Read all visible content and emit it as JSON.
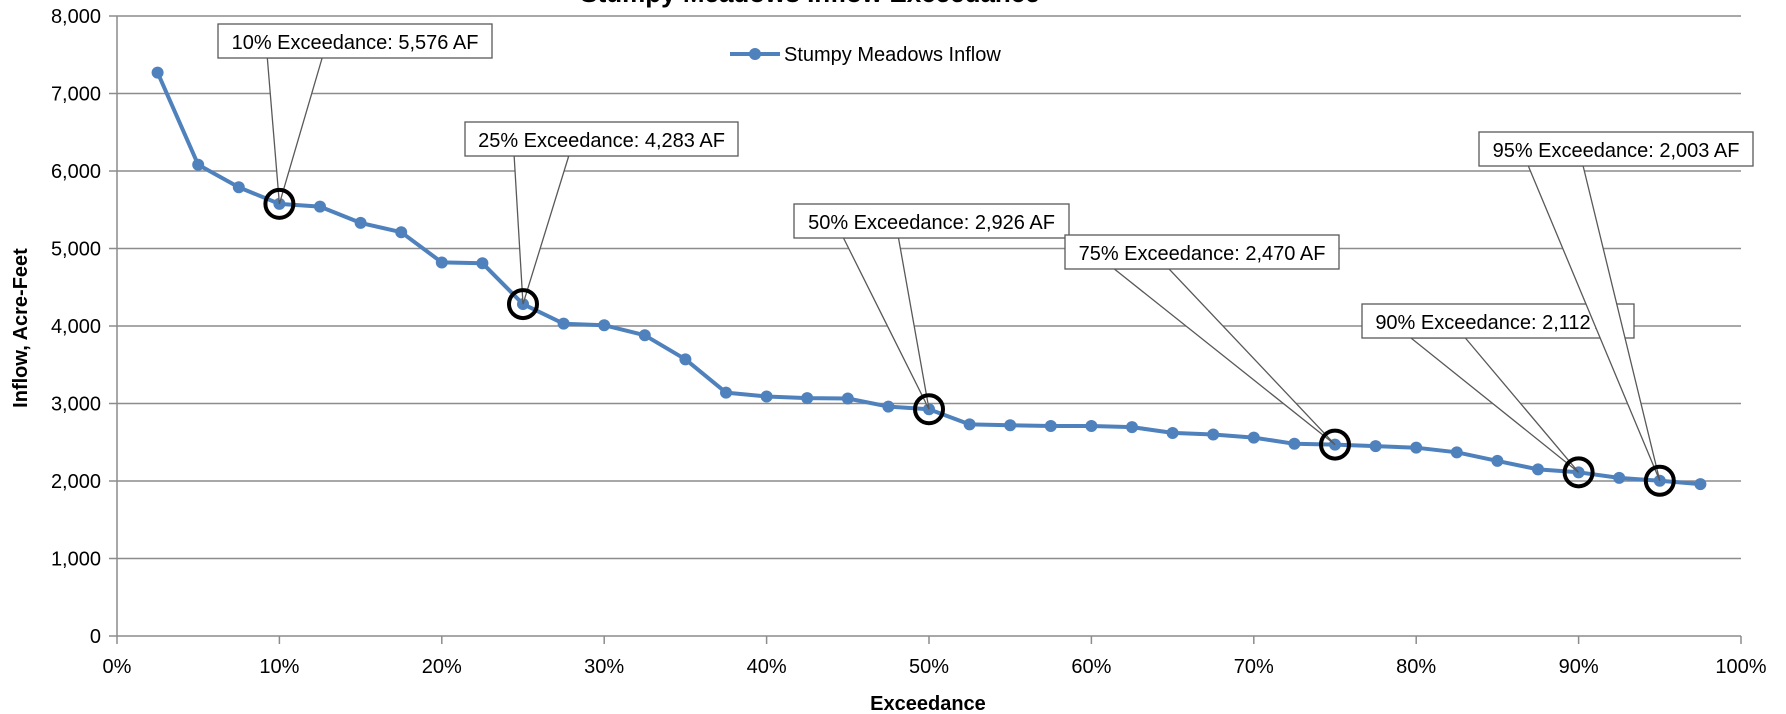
{
  "chart_data": {
    "type": "line",
    "title": "Stumpy Meadows Inflow Exceedance",
    "xlabel": "Exceedance",
    "ylabel": "Inflow, Acre-Feet",
    "xlim": [
      0,
      100
    ],
    "ylim": [
      0,
      8000
    ],
    "x_ticks": [
      "0%",
      "10%",
      "20%",
      "30%",
      "40%",
      "50%",
      "60%",
      "70%",
      "80%",
      "90%",
      "100%"
    ],
    "y_ticks": [
      "0",
      "1,000",
      "2,000",
      "3,000",
      "4,000",
      "5,000",
      "6,000",
      "7,000",
      "8,000"
    ],
    "grid": "horizontal",
    "legend_position": "top-center",
    "series": [
      {
        "name": "Stumpy Meadows Inflow",
        "color": "#4f81bd",
        "x": [
          2.5,
          5,
          7.5,
          10,
          12.5,
          15,
          17.5,
          20,
          22.5,
          25,
          27.5,
          30,
          32.5,
          35,
          37.5,
          40,
          42.5,
          45,
          47.5,
          50,
          52.5,
          55,
          57.5,
          60,
          62.5,
          65,
          67.5,
          70,
          72.5,
          75,
          77.5,
          80,
          82.5,
          85,
          87.5,
          90,
          92.5,
          95,
          97.5
        ],
        "y": [
          7270,
          6080,
          5790,
          5576,
          5540,
          5330,
          5210,
          4820,
          4810,
          4283,
          4030,
          4010,
          3880,
          3570,
          3140,
          3090,
          3070,
          3065,
          2960,
          2926,
          2730,
          2720,
          2710,
          2710,
          2695,
          2620,
          2600,
          2560,
          2480,
          2470,
          2450,
          2430,
          2370,
          2260,
          2150,
          2112,
          2040,
          2003,
          1960
        ]
      }
    ],
    "annotations": [
      {
        "text": "10% Exceedance: 5,576 AF",
        "x": 10,
        "y": 5576
      },
      {
        "text": "25% Exceedance: 4,283 AF",
        "x": 25,
        "y": 4283
      },
      {
        "text": "50% Exceedance: 2,926 AF",
        "x": 50,
        "y": 2926
      },
      {
        "text": "75% Exceedance: 2,470 AF",
        "x": 75,
        "y": 2470
      },
      {
        "text": "90% Exceedance: 2,112 AF",
        "x": 90,
        "y": 2112
      },
      {
        "text": "95% Exceedance: 2,003 AF",
        "x": 95,
        "y": 2003
      }
    ]
  }
}
